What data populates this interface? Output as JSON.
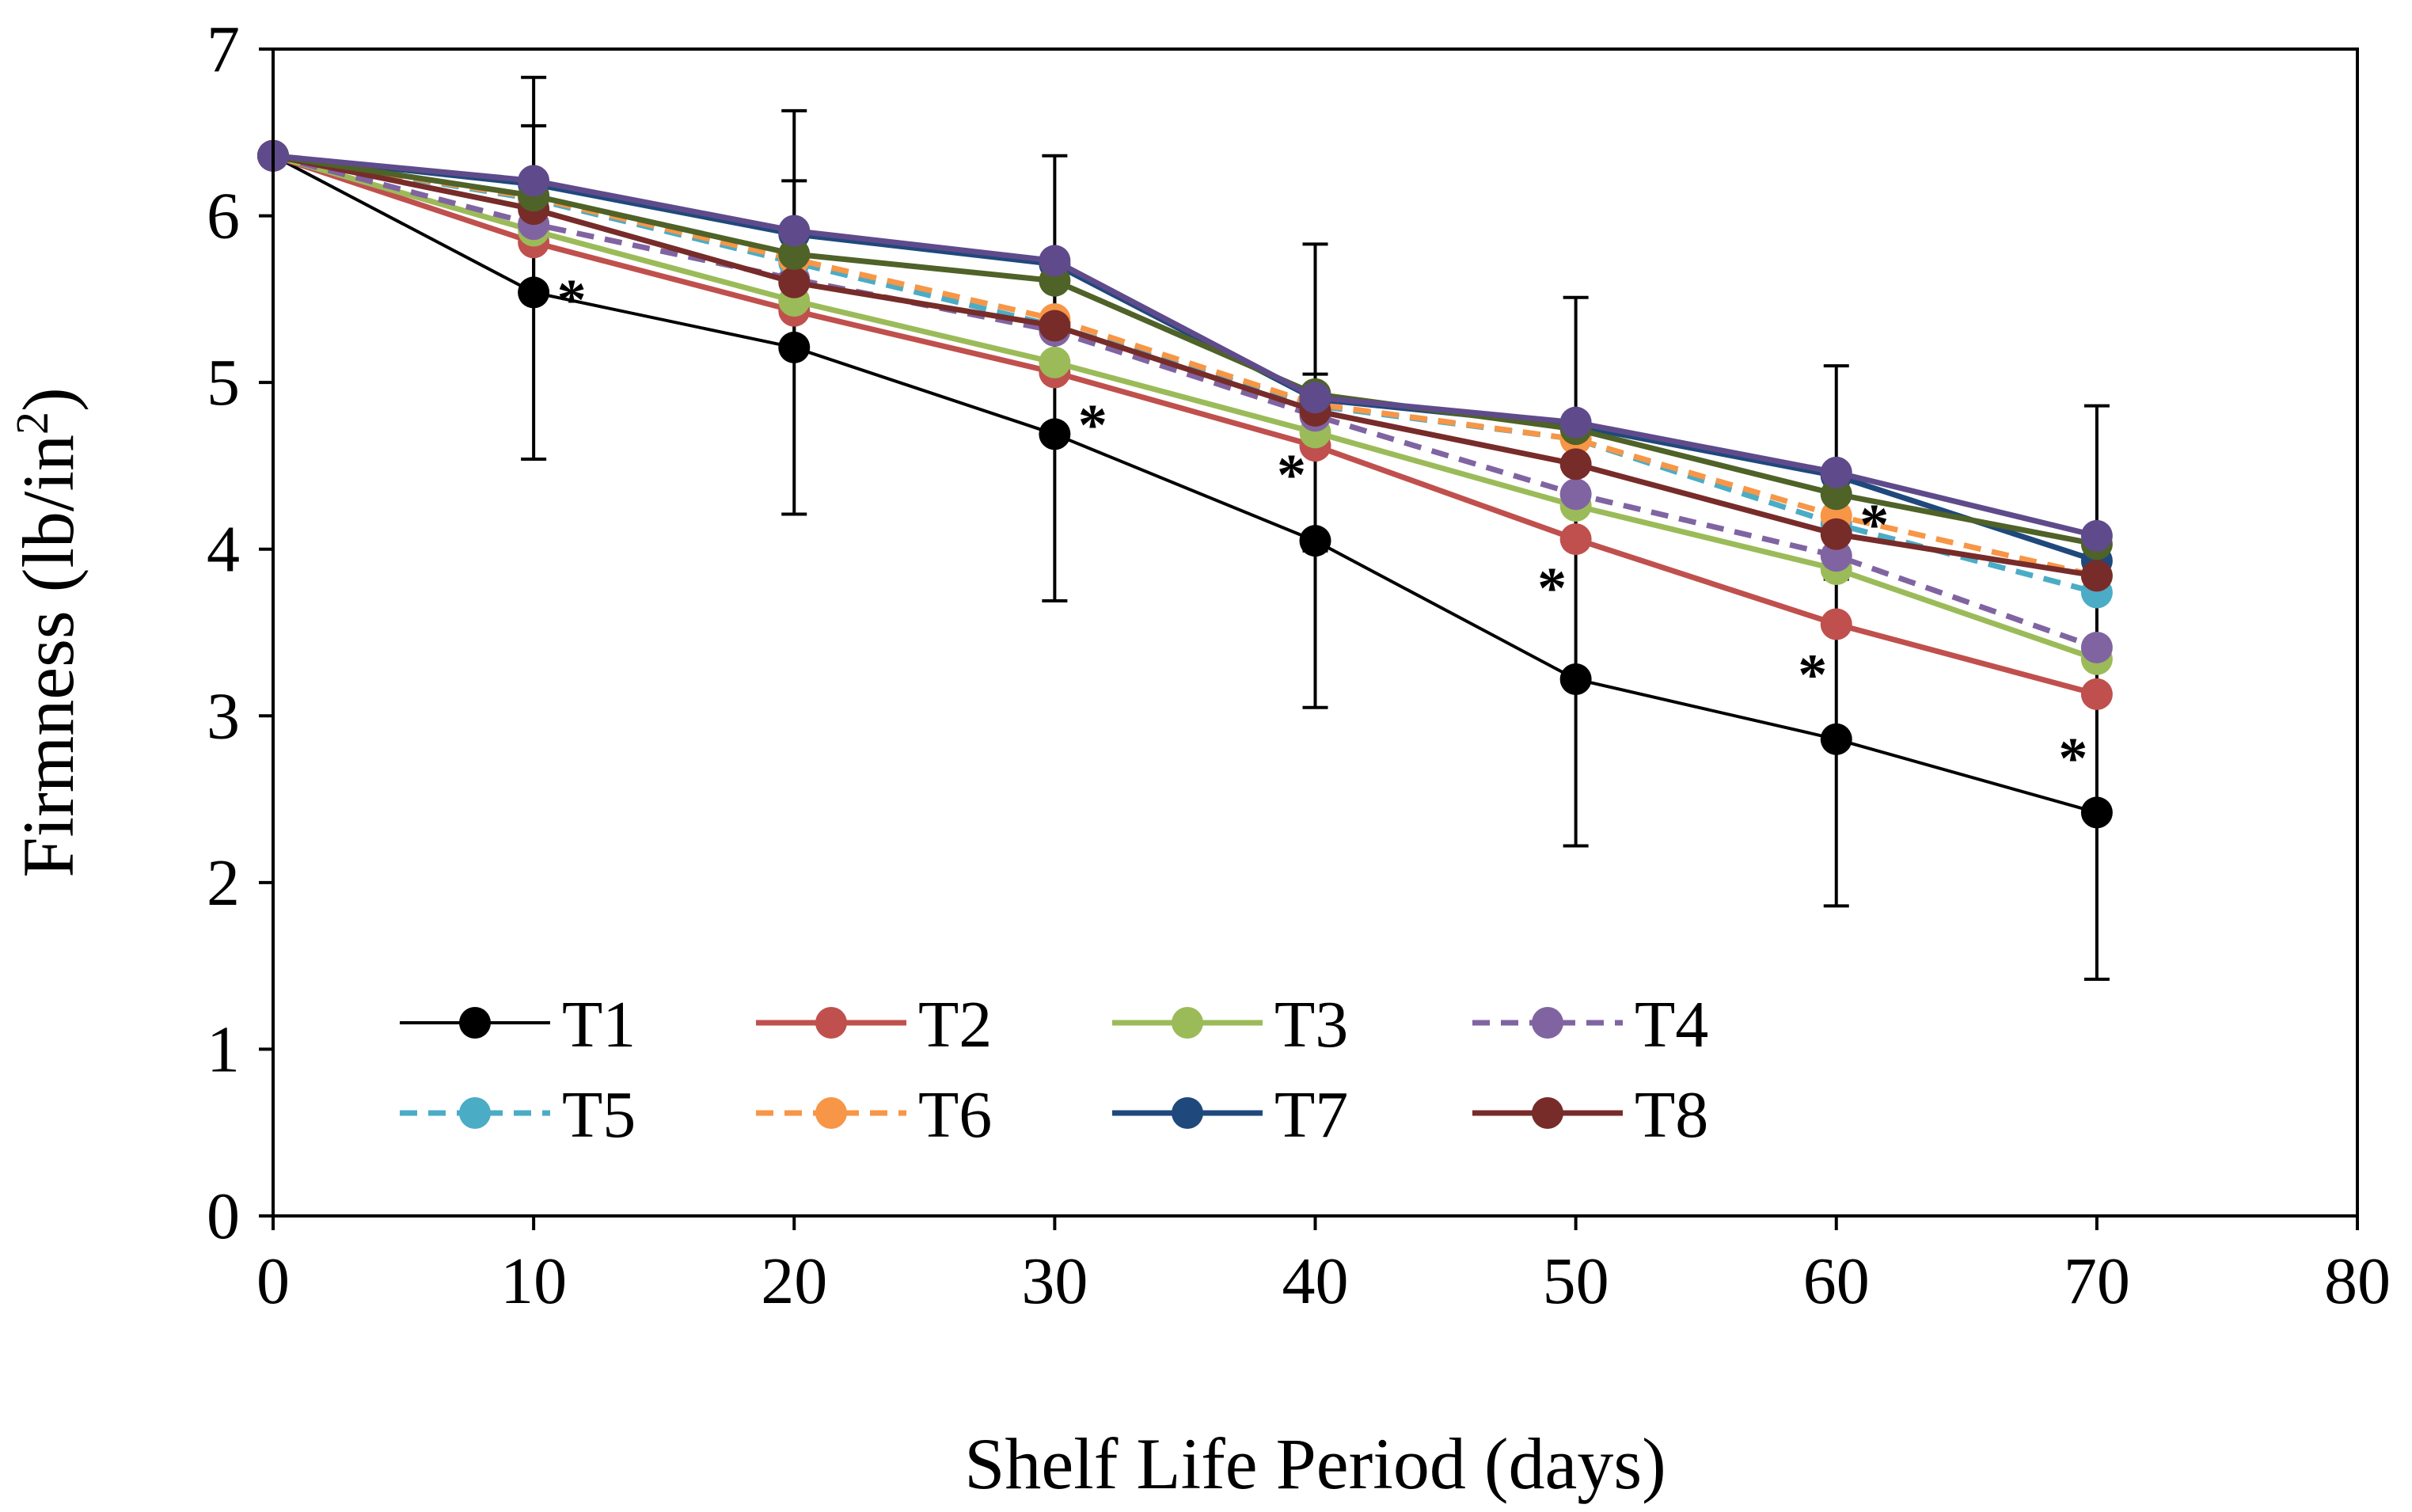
{
  "chart_data": {
    "type": "line",
    "xlabel": "Shelf Life Period (days)",
    "ylabel": "Firmness (lb/in",
    "ylabel_superscript": "2",
    "ylabel_close": ")",
    "xlim": [
      0,
      80
    ],
    "ylim": [
      0,
      7
    ],
    "x_ticks": [
      "0",
      "10",
      "20",
      "30",
      "40",
      "50",
      "60",
      "70",
      "80"
    ],
    "y_ticks": [
      "0",
      "1",
      "2",
      "3",
      "4",
      "5",
      "6",
      "7"
    ],
    "x": [
      0,
      10,
      20,
      30,
      40,
      50,
      60,
      70
    ],
    "legend_position": "bottom-left inside",
    "series": [
      {
        "name": "T1",
        "color": "#000000",
        "dashed": false,
        "values": [
          6.36,
          5.54,
          5.21,
          4.69,
          4.05,
          3.22,
          2.86,
          2.42
        ],
        "error": [
          0,
          1.0,
          1.0,
          1.0,
          1.0,
          1.0,
          1.0,
          1.0
        ]
      },
      {
        "name": "T2",
        "color": "#C0504D",
        "dashed": false,
        "values": [
          6.36,
          5.84,
          5.43,
          5.06,
          4.62,
          4.06,
          3.55,
          3.13
        ]
      },
      {
        "name": "T3",
        "color": "#9BBB59",
        "dashed": false,
        "values": [
          6.36,
          5.91,
          5.49,
          5.12,
          4.7,
          4.26,
          3.88,
          3.34
        ]
      },
      {
        "name": "T4",
        "color": "#8064A2",
        "dashed": true,
        "values": [
          6.36,
          5.95,
          5.62,
          5.31,
          4.8,
          4.33,
          3.96,
          3.41
        ]
      },
      {
        "name": "T5",
        "color": "#4BACC6",
        "dashed": true,
        "values": [
          6.36,
          6.1,
          5.72,
          5.34,
          4.86,
          4.66,
          4.15,
          3.74
        ]
      },
      {
        "name": "T6",
        "color": "#F79646",
        "dashed": true,
        "values": [
          6.36,
          6.11,
          5.74,
          5.38,
          4.87,
          4.66,
          4.2,
          3.84
        ]
      },
      {
        "name": "T7",
        "color": "#1F497D",
        "dashed": false,
        "values": [
          6.36,
          6.19,
          5.89,
          5.71,
          4.9,
          4.74,
          4.44,
          3.93
        ]
      },
      {
        "name": "T8",
        "color": "#772C2A",
        "dashed": false,
        "values": [
          6.36,
          6.04,
          5.6,
          5.34,
          4.83,
          4.51,
          4.09,
          3.84
        ]
      },
      {
        "name": "",
        "color": "#4F6228",
        "dashed": false,
        "legend": false,
        "values": [
          6.36,
          6.12,
          5.77,
          5.61,
          4.93,
          4.72,
          4.33,
          4.03
        ]
      },
      {
        "name": "",
        "color": "#5F4B8B",
        "dashed": false,
        "legend": false,
        "values": [
          6.36,
          6.21,
          5.91,
          5.73,
          4.91,
          4.76,
          4.46,
          4.08
        ],
        "error": [
          0,
          0.62,
          0.72,
          0.63,
          0.92,
          0.75,
          0.64,
          0.78
        ]
      }
    ],
    "significance": [
      {
        "label": "*",
        "x": 10,
        "y": 5.55,
        "side": "right"
      },
      {
        "label": "*",
        "x": 30,
        "y": 4.8,
        "side": "right"
      },
      {
        "label": "*",
        "x": 40,
        "y": 4.5,
        "side": "left"
      },
      {
        "label": "*",
        "x": 50,
        "y": 3.82,
        "side": "left"
      },
      {
        "label": "*",
        "x": 60,
        "y": 3.3,
        "side": "left"
      },
      {
        "label": "*",
        "x": 60,
        "y": 4.2,
        "side": "right"
      },
      {
        "label": "*",
        "x": 70,
        "y": 2.8,
        "side": "left"
      }
    ]
  }
}
